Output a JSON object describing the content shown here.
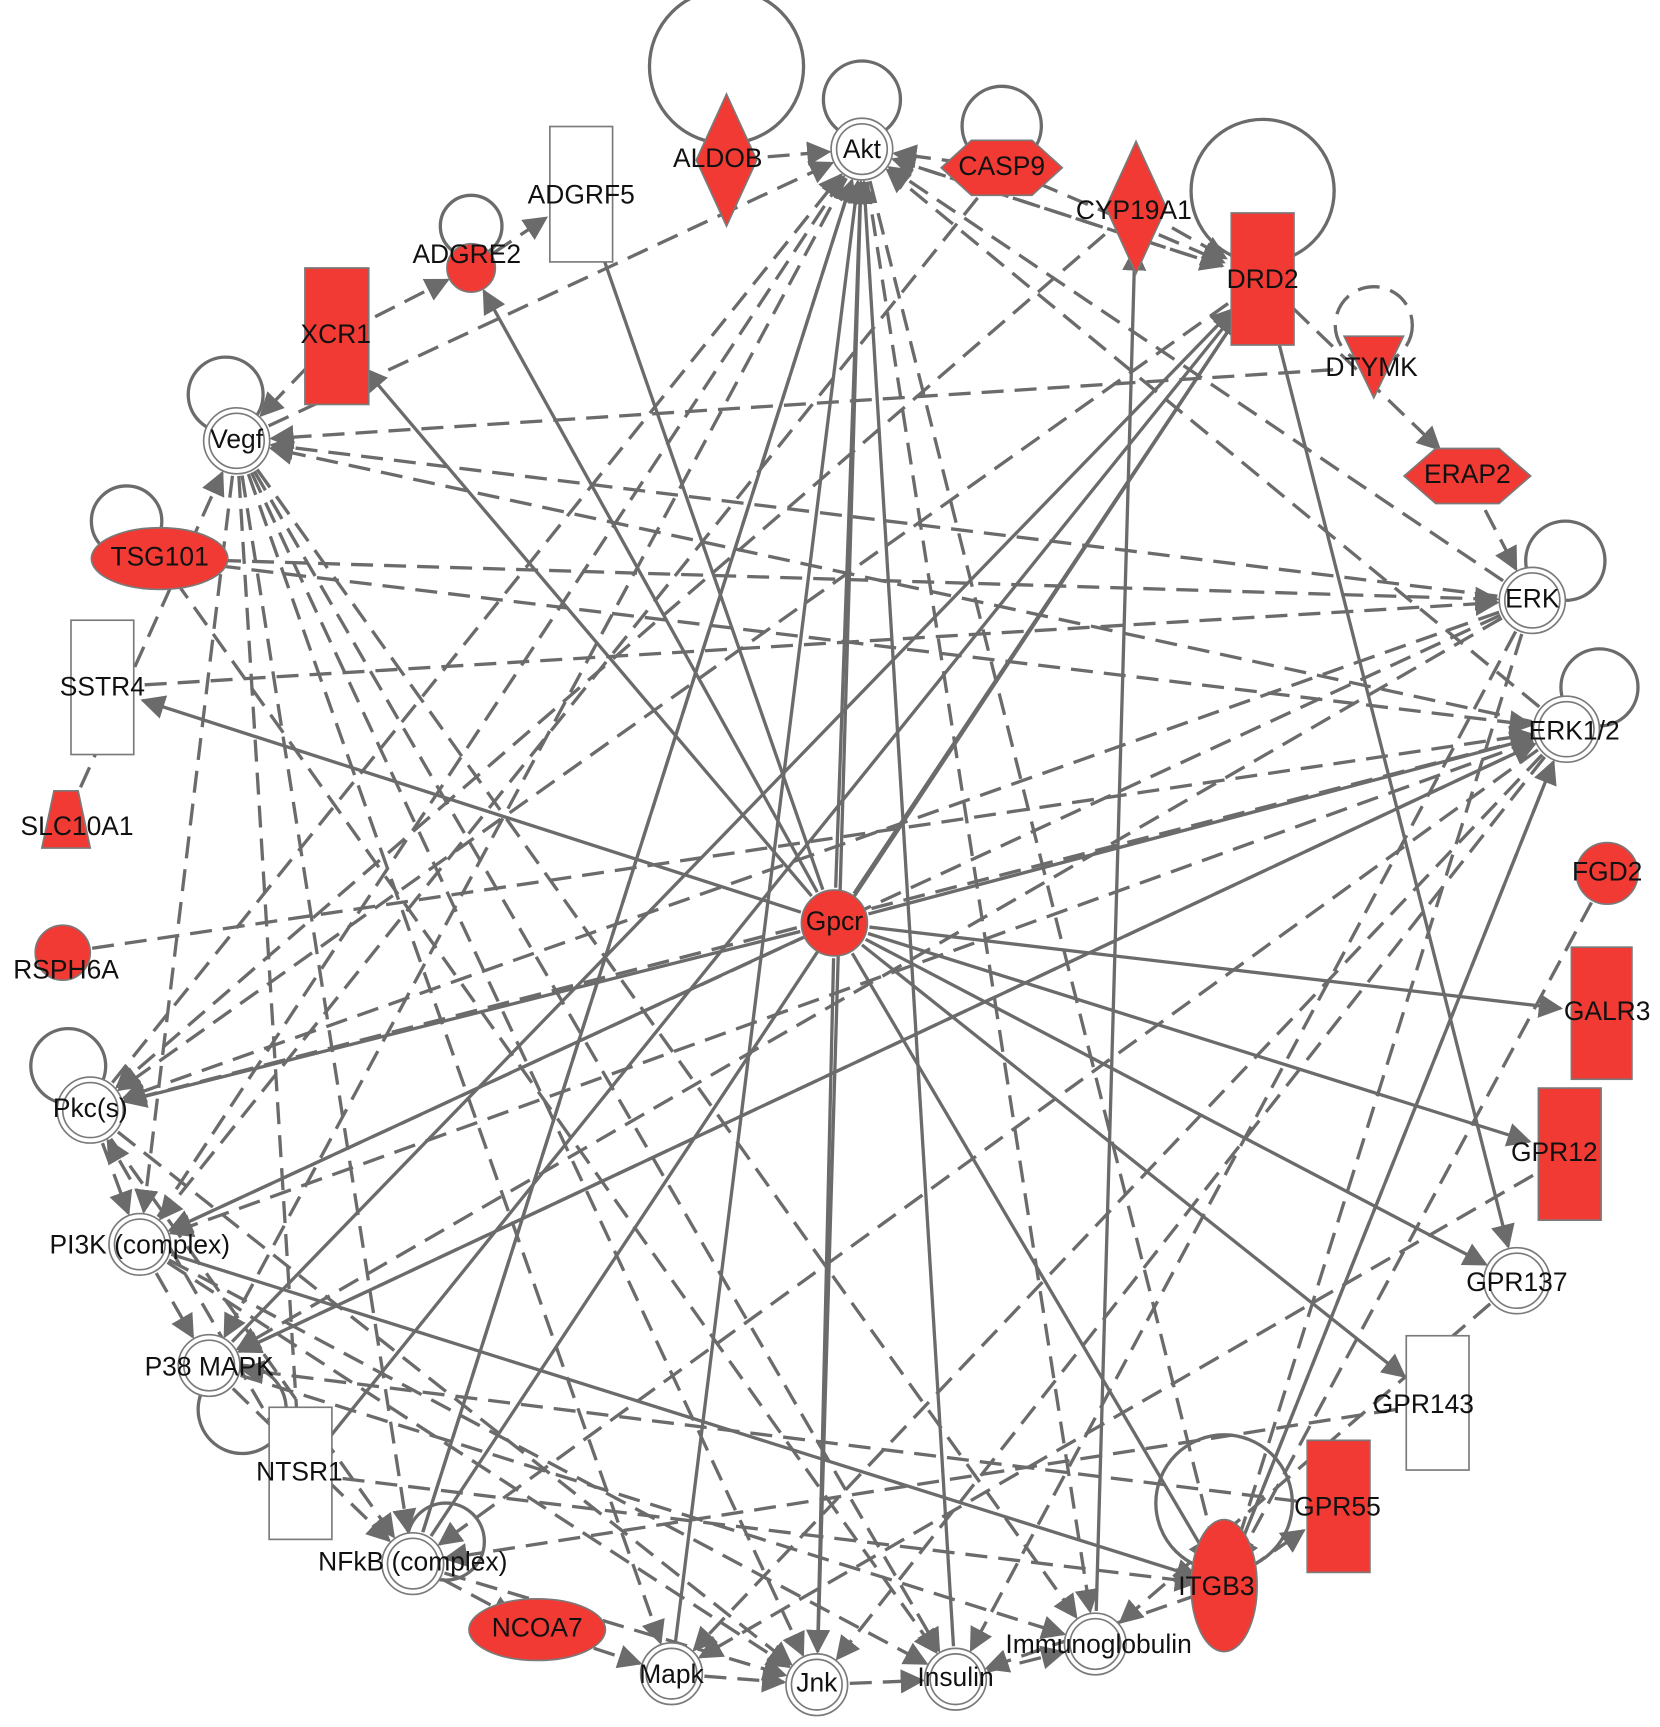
{
  "nodes": [
    {
      "label": "Akt"
    },
    {
      "label": "ALDOB"
    },
    {
      "label": "ADGRF5"
    },
    {
      "label": "ADGRE2"
    },
    {
      "label": "CASP9"
    },
    {
      "label": "CYP19A1"
    },
    {
      "label": "DRD2"
    },
    {
      "label": "DTYMK"
    },
    {
      "label": "XCR1"
    },
    {
      "label": "Vegf"
    },
    {
      "label": "ERAP2"
    },
    {
      "label": "TSG101"
    },
    {
      "label": "ERK"
    },
    {
      "label": "SSTR4"
    },
    {
      "label": "ERK1/2"
    },
    {
      "label": "SLC10A1"
    },
    {
      "label": "FGD2"
    },
    {
      "label": "Gpcr"
    },
    {
      "label": "RSPH6A"
    },
    {
      "label": "GALR3"
    },
    {
      "label": "Pkc(s)"
    },
    {
      "label": "GPR12"
    },
    {
      "label": "PI3K (complex)"
    },
    {
      "label": "GPR137"
    },
    {
      "label": "P38 MAPK"
    },
    {
      "label": "GPR143"
    },
    {
      "label": "NTSR1"
    },
    {
      "label": "GPR55"
    },
    {
      "label": "NFkB (complex)"
    },
    {
      "label": "ITGB3"
    },
    {
      "label": "NCOA7"
    },
    {
      "label": "Mapk"
    },
    {
      "label": "Jnk"
    },
    {
      "label": "Insulin"
    },
    {
      "label": "Immunoglobulin"
    }
  ]
}
